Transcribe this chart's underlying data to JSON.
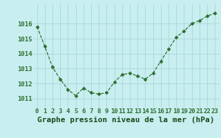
{
  "x": [
    0,
    1,
    2,
    3,
    4,
    5,
    6,
    7,
    8,
    9,
    10,
    11,
    12,
    13,
    14,
    15,
    16,
    17,
    18,
    19,
    20,
    21,
    22,
    23
  ],
  "y": [
    1015.8,
    1014.5,
    1013.1,
    1012.3,
    1011.6,
    1011.2,
    1011.7,
    1011.4,
    1011.3,
    1011.4,
    1012.1,
    1012.6,
    1012.7,
    1012.5,
    1012.3,
    1012.7,
    1013.5,
    1014.3,
    1015.1,
    1015.5,
    1016.0,
    1016.2,
    1016.5,
    1016.7
  ],
  "line_color": "#2d6e2d",
  "marker": "D",
  "marker_size": 2.5,
  "bg_color": "#c8eef0",
  "grid_color": "#add8dc",
  "xlabel": "Graphe pression niveau de la mer (hPa)",
  "xlabel_fontsize": 8,
  "xlabel_color": "#1a4a1a",
  "ylabel_ticks": [
    1011,
    1012,
    1013,
    1014,
    1015,
    1016
  ],
  "ylim": [
    1010.4,
    1017.3
  ],
  "xlim": [
    -0.5,
    23.5
  ],
  "tick_fontsize": 6.5,
  "tick_color": "#2d6e2d"
}
